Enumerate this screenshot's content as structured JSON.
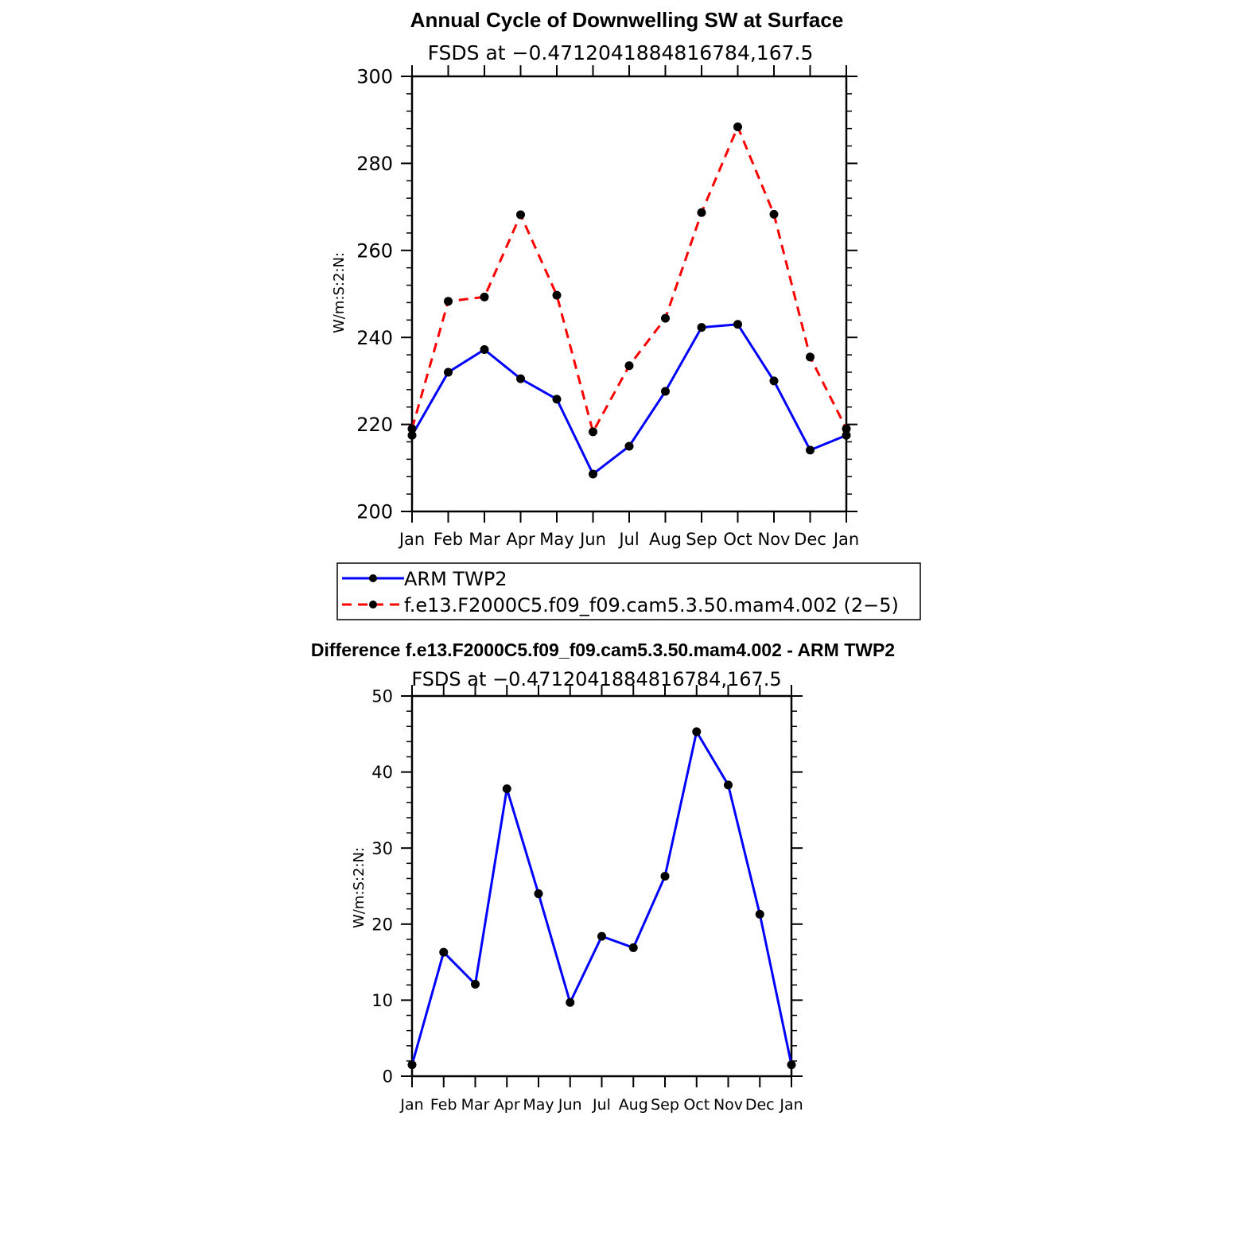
{
  "chart_data": [
    {
      "type": "line",
      "title": "Annual Cycle of Downwelling SW at Surface",
      "subtitle": "FSDS at −0.4712041884816784,167.5",
      "xlabel": "",
      "ylabel": "W/m:S:2:N:",
      "categories": [
        "Jan",
        "Feb",
        "Mar",
        "Apr",
        "May",
        "Jun",
        "Jul",
        "Aug",
        "Sep",
        "Oct",
        "Nov",
        "Dec",
        "Jan"
      ],
      "ylim": [
        200,
        300
      ],
      "yticks": [
        "200",
        "220",
        "240",
        "260",
        "280",
        "300"
      ],
      "series": [
        {
          "name": "ARM TWP2",
          "color": "#0000ff",
          "dash": "solid",
          "values": [
            217.5,
            232.0,
            237.2,
            230.5,
            225.8,
            208.6,
            215.0,
            227.6,
            242.3,
            243.0,
            230.0,
            214.1,
            217.5
          ]
        },
        {
          "name": "f.e13.F2000C5.f09_f09.cam5.3.50.mam4.002 (2−5)",
          "color": "#ff0000",
          "dash": "dashed",
          "values": [
            219.0,
            248.3,
            249.3,
            268.2,
            249.7,
            218.3,
            233.5,
            244.4,
            268.7,
            288.4,
            268.3,
            235.5,
            219.0
          ]
        }
      ],
      "legend": "below"
    },
    {
      "type": "line",
      "title": "Difference f.e13.F2000C5.f09_f09.cam5.3.50.mam4.002 - ARM TWP2",
      "subtitle": "FSDS at −0.4712041884816784,167.5",
      "xlabel": "",
      "ylabel": "W/m:S:2:N:",
      "categories": [
        "Jan",
        "Feb",
        "Mar",
        "Apr",
        "May",
        "Jun",
        "Jul",
        "Aug",
        "Sep",
        "Oct",
        "Nov",
        "Dec",
        "Jan"
      ],
      "ylim": [
        0,
        50
      ],
      "yticks": [
        "0",
        "10",
        "20",
        "30",
        "40",
        "50"
      ],
      "series": [
        {
          "color": "#0000ff",
          "dash": "solid",
          "values": [
            1.5,
            16.3,
            12.1,
            37.8,
            24.0,
            9.7,
            18.4,
            16.9,
            26.3,
            45.3,
            38.3,
            21.3,
            1.5
          ]
        }
      ]
    }
  ]
}
